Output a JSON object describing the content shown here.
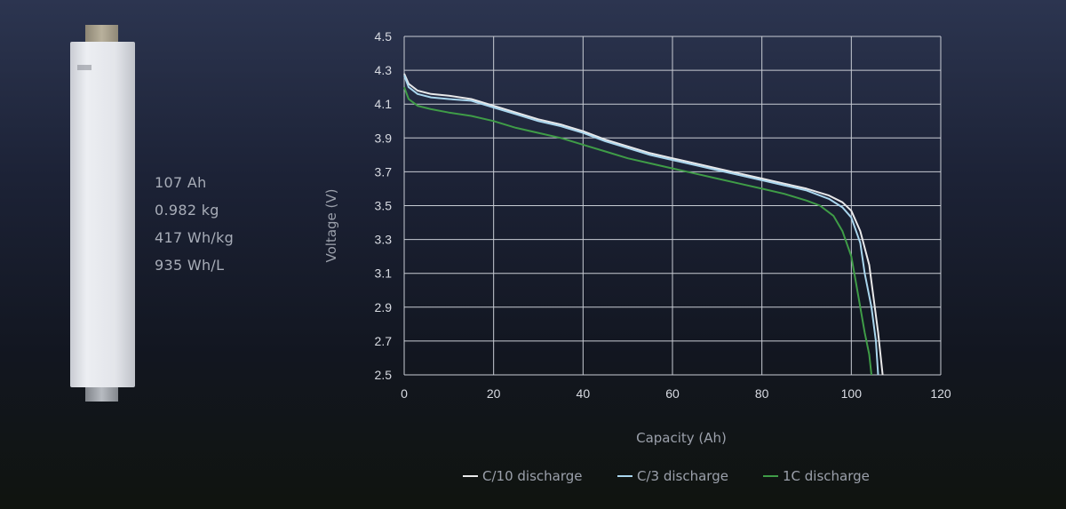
{
  "specs": [
    "107 Ah",
    "0.982 kg",
    "417 Wh/kg",
    "935 Wh/L"
  ],
  "chart_data": {
    "type": "line",
    "xlabel": "Capacity (Ah)",
    "ylabel": "Voltage (V)",
    "xlim": [
      0,
      120
    ],
    "ylim": [
      2.5,
      4.5
    ],
    "x_ticks": [
      "0",
      "20",
      "40",
      "60",
      "80",
      "100",
      "120"
    ],
    "y_ticks": [
      "4.5",
      "4.3",
      "4.1",
      "3.9",
      "3.7",
      "3.5",
      "3.3",
      "3.1",
      "2.9",
      "2.7",
      "2.5"
    ],
    "grid": true,
    "legend_position": "bottom",
    "series": [
      {
        "name": "C/10 discharge",
        "color": "#e9e9ea",
        "points": [
          [
            0,
            4.28
          ],
          [
            1,
            4.22
          ],
          [
            3,
            4.18
          ],
          [
            6,
            4.16
          ],
          [
            10,
            4.15
          ],
          [
            15,
            4.13
          ],
          [
            20,
            4.09
          ],
          [
            25,
            4.05
          ],
          [
            30,
            4.01
          ],
          [
            35,
            3.98
          ],
          [
            40,
            3.94
          ],
          [
            45,
            3.89
          ],
          [
            50,
            3.85
          ],
          [
            55,
            3.81
          ],
          [
            60,
            3.78
          ],
          [
            65,
            3.75
          ],
          [
            70,
            3.72
          ],
          [
            75,
            3.69
          ],
          [
            80,
            3.66
          ],
          [
            85,
            3.63
          ],
          [
            90,
            3.6
          ],
          [
            95,
            3.56
          ],
          [
            98,
            3.52
          ],
          [
            100,
            3.47
          ],
          [
            102,
            3.35
          ],
          [
            104,
            3.15
          ],
          [
            105,
            2.95
          ],
          [
            106,
            2.75
          ],
          [
            107,
            2.5
          ]
        ]
      },
      {
        "name": "C/3 discharge",
        "color": "#a9d6ee",
        "points": [
          [
            0,
            4.27
          ],
          [
            1,
            4.2
          ],
          [
            3,
            4.16
          ],
          [
            6,
            4.14
          ],
          [
            10,
            4.13
          ],
          [
            15,
            4.12
          ],
          [
            20,
            4.08
          ],
          [
            25,
            4.04
          ],
          [
            30,
            4
          ],
          [
            35,
            3.97
          ],
          [
            40,
            3.93
          ],
          [
            45,
            3.88
          ],
          [
            50,
            3.84
          ],
          [
            55,
            3.8
          ],
          [
            60,
            3.77
          ],
          [
            65,
            3.74
          ],
          [
            70,
            3.71
          ],
          [
            75,
            3.68
          ],
          [
            80,
            3.65
          ],
          [
            85,
            3.62
          ],
          [
            90,
            3.59
          ],
          [
            95,
            3.54
          ],
          [
            98,
            3.49
          ],
          [
            100,
            3.43
          ],
          [
            102,
            3.28
          ],
          [
            103,
            3.1
          ],
          [
            104.5,
            2.9
          ],
          [
            105.5,
            2.7
          ],
          [
            106,
            2.5
          ]
        ]
      },
      {
        "name": "1C discharge",
        "color": "#3f9c47",
        "points": [
          [
            0,
            4.2
          ],
          [
            1,
            4.13
          ],
          [
            3,
            4.09
          ],
          [
            6,
            4.07
          ],
          [
            10,
            4.05
          ],
          [
            15,
            4.03
          ],
          [
            20,
            4
          ],
          [
            25,
            3.96
          ],
          [
            30,
            3.93
          ],
          [
            35,
            3.9
          ],
          [
            40,
            3.86
          ],
          [
            45,
            3.82
          ],
          [
            50,
            3.78
          ],
          [
            55,
            3.75
          ],
          [
            60,
            3.72
          ],
          [
            65,
            3.69
          ],
          [
            70,
            3.66
          ],
          [
            75,
            3.63
          ],
          [
            80,
            3.6
          ],
          [
            85,
            3.57
          ],
          [
            90,
            3.53
          ],
          [
            93,
            3.5
          ],
          [
            96,
            3.44
          ],
          [
            98,
            3.35
          ],
          [
            100,
            3.2
          ],
          [
            101,
            3.05
          ],
          [
            102,
            2.9
          ],
          [
            103,
            2.75
          ],
          [
            104,
            2.62
          ],
          [
            104.5,
            2.5
          ]
        ]
      }
    ]
  }
}
